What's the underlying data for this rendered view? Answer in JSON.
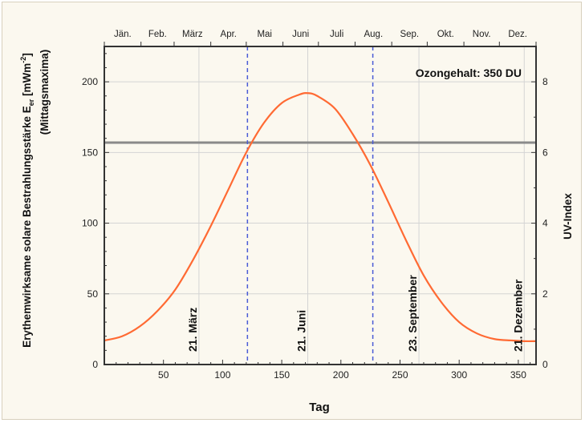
{
  "chart_data": {
    "type": "line",
    "xlabel": "Tag",
    "ylabel": "Erythemwirksame solare Bestrahlungsstärke E",
    "ylabel_sub": "er",
    "ylabel_unit": " [mWm",
    "ylabel_sup": "-2",
    "ylabel_close": "]",
    "ylabel2": "(Mittagsmaxima)",
    "y2label": "UV-Index",
    "xlim": [
      0,
      365
    ],
    "ylim": [
      0,
      225
    ],
    "y2lim": [
      0,
      9
    ],
    "x_ticks": [
      50,
      100,
      150,
      200,
      250,
      300,
      350
    ],
    "y_ticks": [
      0,
      50,
      100,
      150,
      200
    ],
    "y2_ticks": [
      0,
      2,
      4,
      6,
      8
    ],
    "months": [
      "Jän.",
      "Feb.",
      "März",
      "Apr.",
      "Mai",
      "Juni",
      "Juli",
      "Aug.",
      "Sep.",
      "Okt.",
      "Nov.",
      "Dez."
    ],
    "month_days": [
      0,
      31,
      59,
      90,
      120,
      151,
      181,
      212,
      243,
      273,
      304,
      334,
      365
    ],
    "grid": true,
    "annotation": "Ozongehalt: 350 DU",
    "series": [
      {
        "color": "#ff6a33",
        "x": [
          0,
          15,
          30,
          45,
          60,
          75,
          90,
          105,
          120,
          135,
          150,
          165,
          172,
          180,
          195,
          210,
          225,
          240,
          255,
          270,
          285,
          300,
          315,
          330,
          345,
          355,
          365
        ],
        "y": [
          17,
          20,
          27,
          38,
          53,
          74,
          98,
          124,
          150,
          171,
          185,
          191,
          192,
          190,
          181,
          163,
          141,
          115,
          88,
          63,
          44,
          30,
          22,
          18,
          17,
          16.5,
          16.5
        ]
      }
    ],
    "hline": {
      "y": 157,
      "color": "#8a8a8a"
    },
    "vlines": [
      {
        "x": 121,
        "color": "#4a5bd6"
      },
      {
        "x": 227,
        "color": "#4a5bd6"
      }
    ],
    "grid_vlines": [
      80,
      172,
      266,
      355
    ],
    "markers": [
      {
        "x": 80,
        "label": "21. März"
      },
      {
        "x": 172,
        "label": "21. Juni"
      },
      {
        "x": 266,
        "label": "23. September"
      },
      {
        "x": 355,
        "label": "21. Dezember"
      }
    ]
  }
}
